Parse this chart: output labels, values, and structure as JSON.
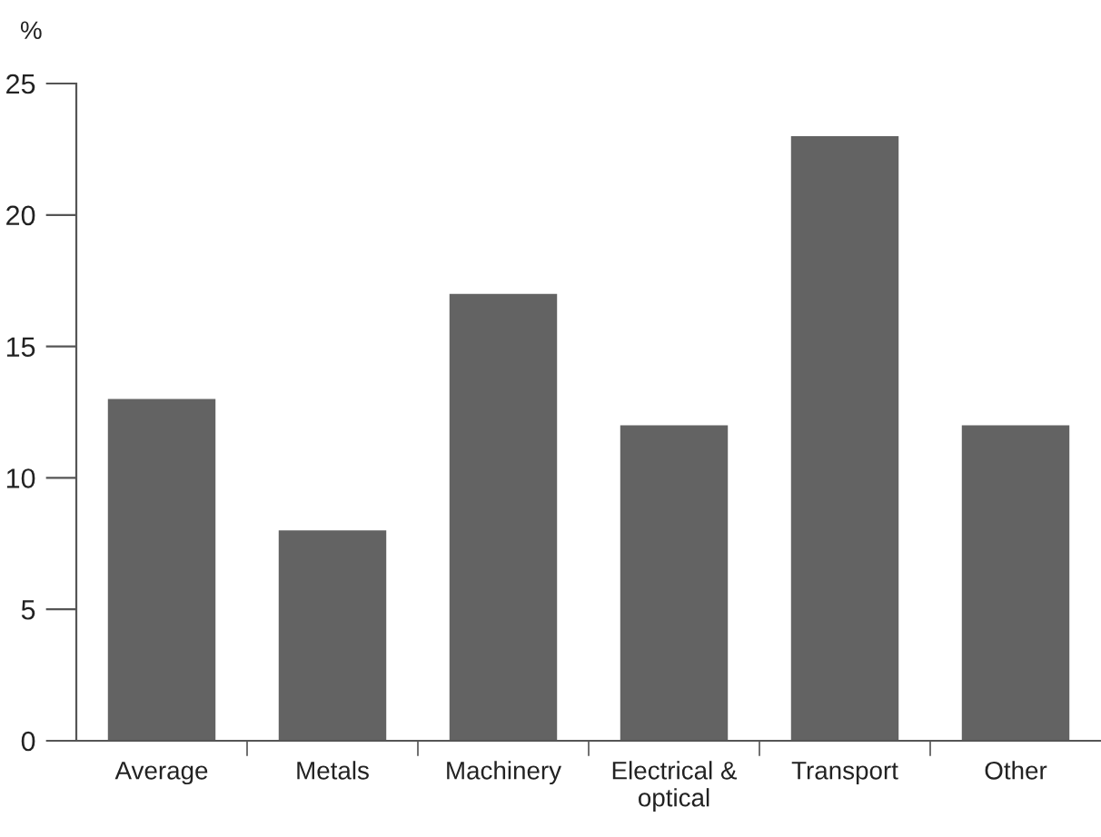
{
  "chart_data": {
    "type": "bar",
    "ylabel": "%",
    "categories": [
      "Average",
      "Metals",
      "Machinery",
      "Electrical &\noptical",
      "Transport",
      "Other"
    ],
    "values": [
      13,
      8,
      17,
      12,
      23,
      12
    ],
    "color": "#636363",
    "ylim": [
      0,
      25
    ],
    "yticks": [
      0,
      5,
      10,
      15,
      20,
      25
    ],
    "grid": false,
    "legend": false
  }
}
